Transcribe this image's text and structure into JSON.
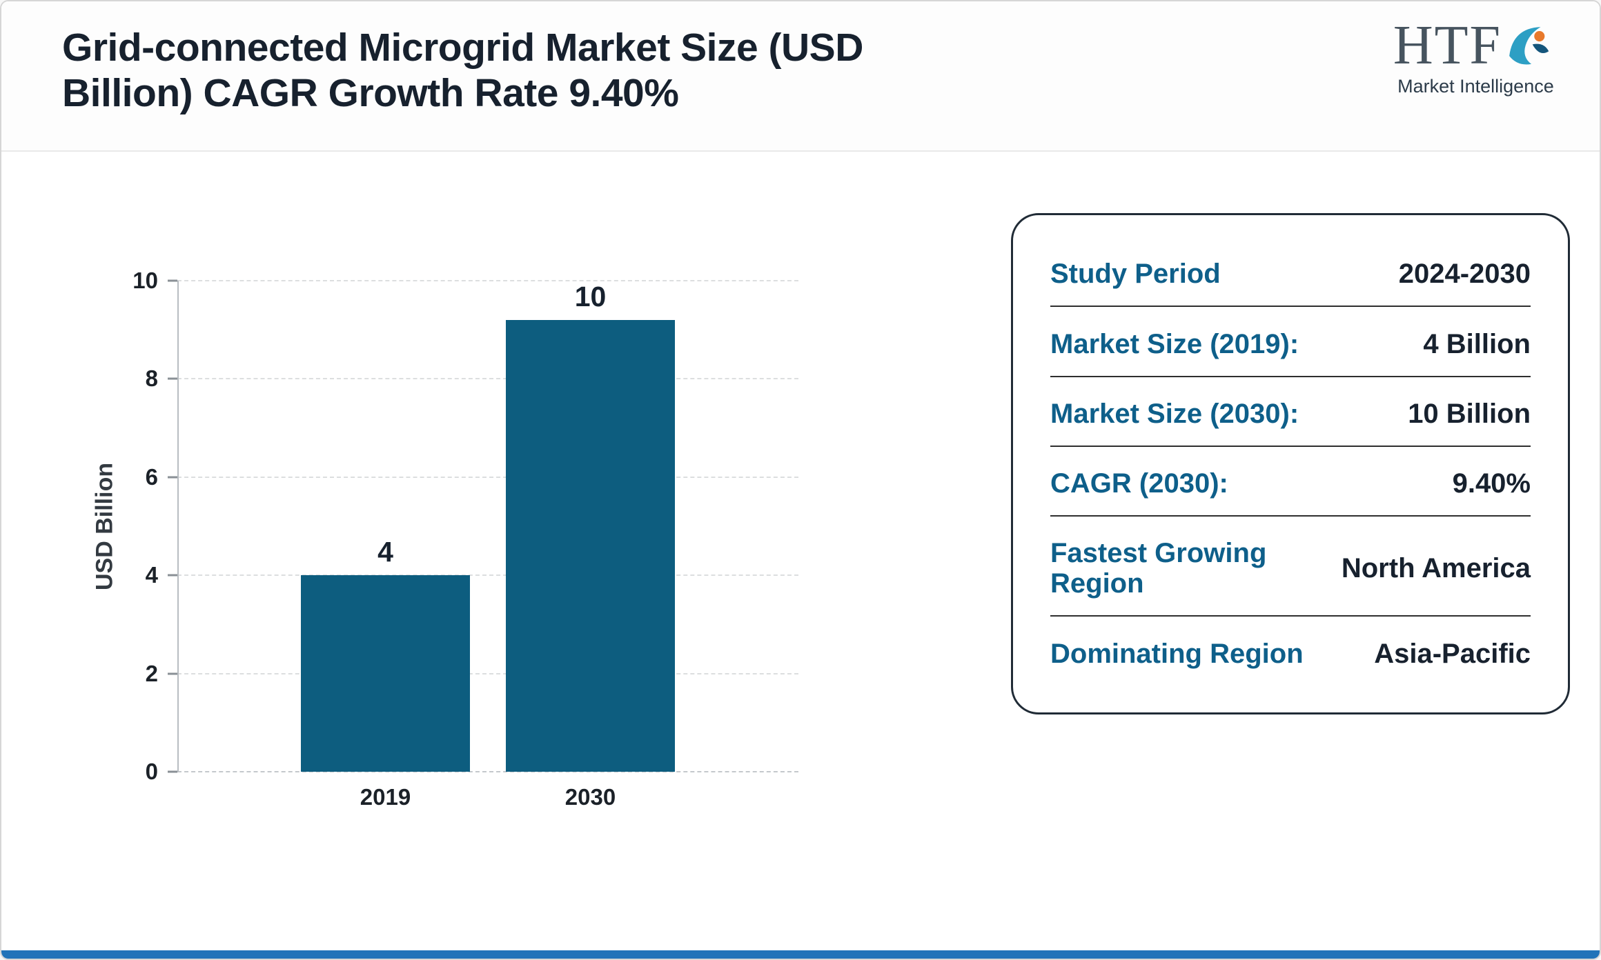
{
  "header": {
    "title": "Grid-connected Microgrid Market Size (USD Billion) CAGR Growth Rate 9.40%",
    "logo": {
      "text": "HTF",
      "subtitle": "Market Intelligence"
    }
  },
  "chart_data": {
    "type": "bar",
    "categories": [
      "2019",
      "2030"
    ],
    "values": [
      4,
      10
    ],
    "title": "",
    "xlabel": "",
    "ylabel": "USD Billion",
    "ylim": [
      0,
      10
    ],
    "yticks": [
      0,
      2,
      4,
      6,
      8,
      10
    ],
    "grid": "horizontal-dashed",
    "legend": "none"
  },
  "info_card": {
    "rows": [
      {
        "label": "Study Period",
        "value": "2024-2030"
      },
      {
        "label": "Market Size (2019):",
        "value": "4 Billion"
      },
      {
        "label": "Market Size (2030):",
        "value": "10 Billion"
      },
      {
        "label": "CAGR (2030):",
        "value": "9.40%"
      },
      {
        "label": "Fastest Growing Region",
        "value": "North America"
      },
      {
        "label": "Dominating Region",
        "value": "Asia-Pacific"
      }
    ]
  },
  "colors": {
    "bar": "#0d5d7f",
    "card_label": "#0e5f8a",
    "heading_text": "#17212e",
    "value_text": "#17212e",
    "bottom_bar": "#2173b9",
    "logo_swirl": "#2d9fc4",
    "logo_dot": "#e8792b"
  }
}
